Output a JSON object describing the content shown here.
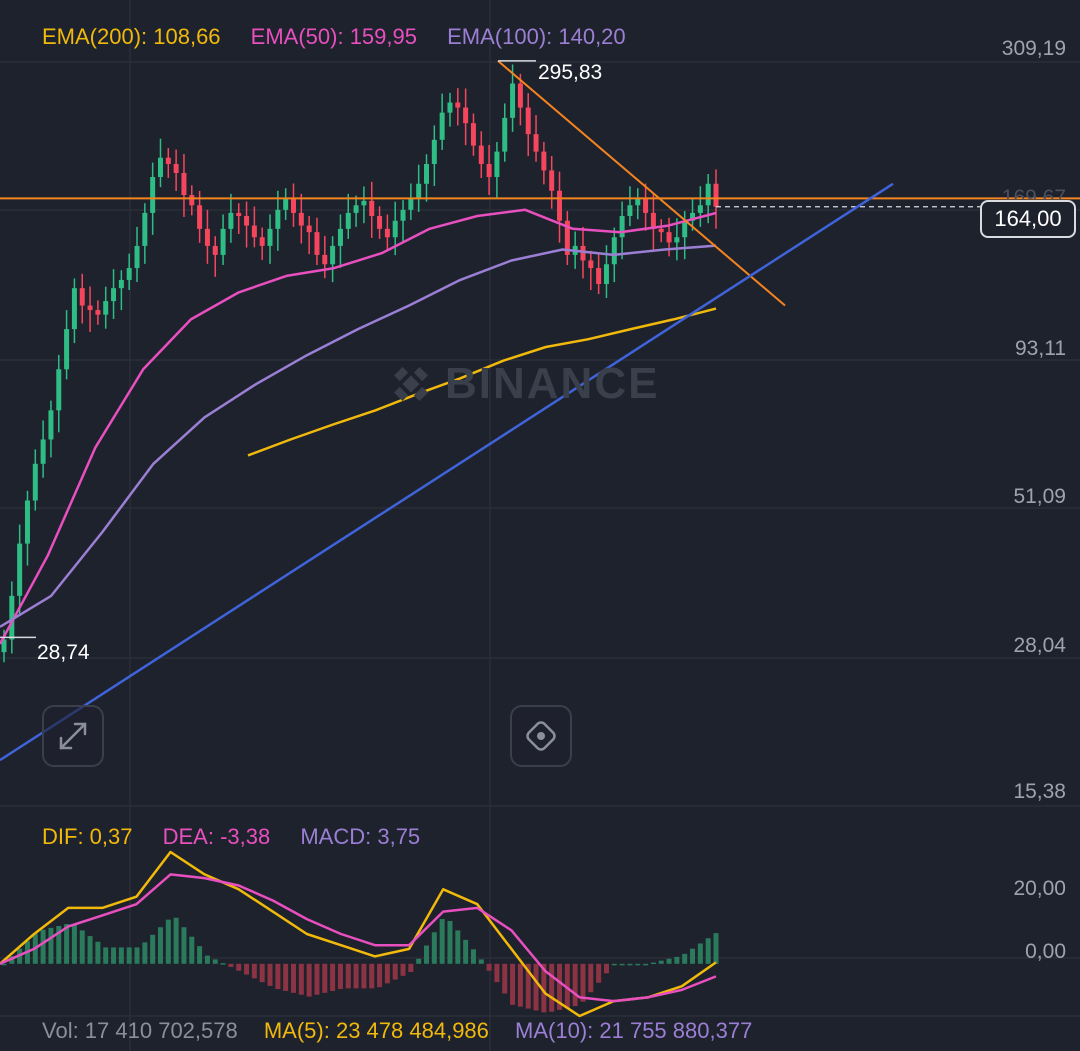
{
  "legend": {
    "ema200": "EMA(200): 108,66",
    "ema50": "EMA(50): 159,95",
    "ema100": "EMA(100): 140,20",
    "dif": "DIF: 0,37",
    "dea": "DEA: -3,38",
    "macd": "MACD: 3,75",
    "vol": "Vol: 17 410 702,578",
    "ma5": "MA(5): 23 478 484,986",
    "ma10": "MA(10): 21 755 880,377"
  },
  "colors": {
    "background": "#1e222d",
    "up": "#2ebd85",
    "down": "#f6465d",
    "ema200": "#f0b90b",
    "ema50": "#e84fbf",
    "ema100": "#9b7fd4",
    "trend_orange": "#f5841f",
    "trend_blue": "#3f63d8"
  },
  "price_axis": [
    "309,19",
    "169,67",
    "93,11",
    "51,09",
    "28,04",
    "15,38"
  ],
  "macd_axis": [
    "20,00",
    "0,00"
  ],
  "current_price": "164,00",
  "high_label": "295,83",
  "low_label": "28,74",
  "watermark": "BINANCE",
  "icons": {
    "expand": "expand-arrows-icon",
    "eye": "eye-icon",
    "logo": "binance-logo-icon"
  },
  "chart_data": {
    "type": "candlestick",
    "y_scale": "log",
    "ylim": [
      15.38,
      309.19
    ],
    "horizontal_level": 169.67,
    "current_price": 164.0,
    "high": 295.83,
    "low": 28.74,
    "closes": [
      28.5,
      34,
      42,
      50,
      58,
      64,
      72,
      85,
      100,
      118,
      110,
      108,
      106,
      112,
      118,
      122,
      128,
      140,
      160,
      185,
      200,
      195,
      188,
      172,
      165,
      150,
      140,
      135,
      150,
      160,
      158,
      152,
      145,
      140,
      150,
      162,
      170,
      160,
      152,
      148,
      135,
      130,
      140,
      150,
      160,
      165,
      168,
      158,
      150,
      145,
      155,
      162,
      170,
      180,
      195,
      215,
      240,
      250,
      245,
      230,
      210,
      195,
      185,
      205,
      235,
      270,
      245,
      220,
      205,
      190,
      175,
      155,
      135,
      140,
      132,
      128,
      120,
      130,
      145,
      158,
      165,
      170,
      160,
      150,
      148,
      142,
      145,
      155,
      160,
      165,
      180,
      164
    ],
    "series": [
      {
        "name": "EMA(200)",
        "values": [
          60,
          64,
          68,
          72,
          77,
          82,
          88,
          93,
          96,
          100,
          104,
          108.66
        ]
      },
      {
        "name": "EMA(50)",
        "values": [
          28,
          40,
          62,
          85,
          104,
          116,
          124,
          128,
          136,
          150,
          158,
          162,
          150,
          148,
          152,
          159.95
        ]
      },
      {
        "name": "EMA(100)",
        "values": [
          30,
          34,
          44,
          58,
          70,
          80,
          90,
          100,
          110,
          122,
          132,
          138,
          135,
          138,
          140.2
        ]
      }
    ],
    "macd": {
      "dif": [
        0,
        8,
        15,
        15,
        18,
        30,
        24,
        20,
        14,
        8,
        5,
        2,
        4,
        20,
        16,
        4,
        -8,
        -14,
        -10,
        -9,
        -6,
        0.37
      ],
      "dea": [
        0,
        4,
        10,
        13,
        16,
        24,
        23,
        21,
        17,
        12,
        8,
        5,
        5,
        14,
        15,
        9,
        -2,
        -9,
        -10,
        -9,
        -7,
        -3.38
      ]
    }
  }
}
